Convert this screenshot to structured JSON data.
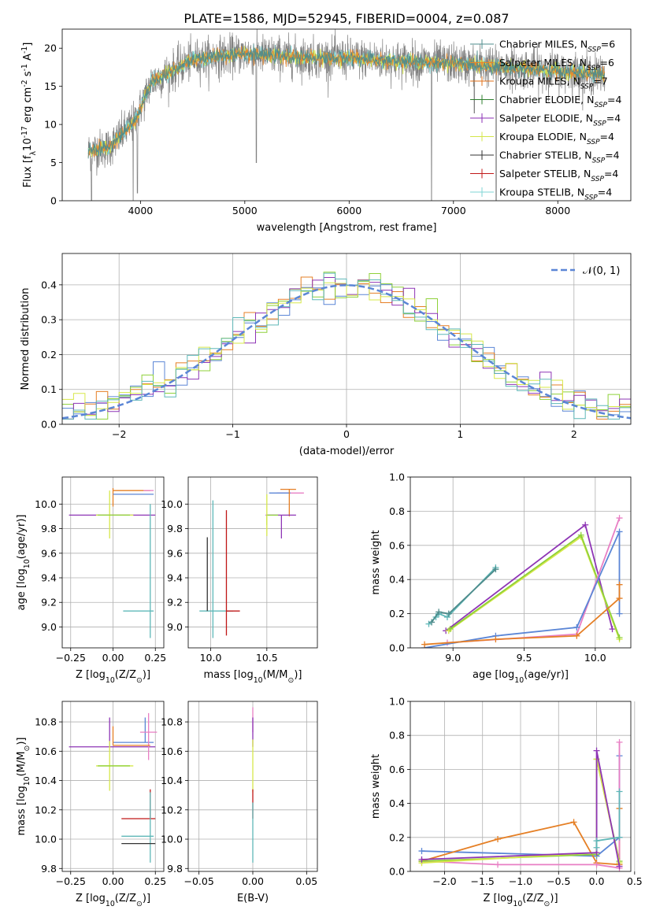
{
  "title": "PLATE=1586, MJD=52945, FIBERID=0004, z=0.087",
  "colors": {
    "chabrier_miles": "#4f8c8c",
    "salpeter_miles": "#e8862a",
    "kroupa_miles": "#e0701a",
    "chabrier_elodie": "#2f7f2f",
    "salpeter_elodie": "#8b2fb5",
    "kroupa_elodie": "#d4e64a",
    "chabrier_stelib": "#333333",
    "salpeter_stelib": "#c01818",
    "kroupa_stelib": "#7fd6d6",
    "data": "#808080",
    "blue": "#5b86d6",
    "pink": "#e87fc4",
    "green": "#8fd13a",
    "purple": "#8e35b5",
    "orange": "#e57f25",
    "yellow": "#d7e84a",
    "teal": "#5fb8b8"
  },
  "chart_data": [
    {
      "id": "spectrum",
      "type": "line",
      "xlabel": "wavelength [Angstrom, rest frame]",
      "ylabel": "Flux [f$_\\lambda$10$^{-17}$ erg cm$^{-2}$ s$^{-1}$ A$^{-1}$]",
      "xlim": [
        3250,
        8700
      ],
      "ylim": [
        0,
        22.5
      ],
      "xticks": [
        4000,
        5000,
        6000,
        7000,
        8000
      ],
      "yticks": [
        0,
        5,
        10,
        15,
        20
      ],
      "legend_position": "top-right",
      "legend": [
        {
          "label": "Chabrier MILES, N",
          "sub": "SSP",
          "suffix": "=6",
          "color": "chabrier_miles"
        },
        {
          "label": "Salpeter MILES, N",
          "sub": "SSP",
          "suffix": "=6",
          "color": "salpeter_miles"
        },
        {
          "label": "Kroupa MILES, N",
          "sub": "SSP",
          "suffix": "=7",
          "color": "kroupa_miles"
        },
        {
          "label": "Chabrier ELODIE, N",
          "sub": "SSP",
          "suffix": "=4",
          "color": "chabrier_elodie"
        },
        {
          "label": "Salpeter ELODIE, N",
          "sub": "SSP",
          "suffix": "=4",
          "color": "salpeter_elodie"
        },
        {
          "label": "Kroupa ELODIE, N",
          "sub": "SSP",
          "suffix": "=4",
          "color": "kroupa_elodie"
        },
        {
          "label": "Chabrier STELIB, N",
          "sub": "SSP",
          "suffix": "=4",
          "color": "chabrier_stelib"
        },
        {
          "label": "Salpeter STELIB, N",
          "sub": "SSP",
          "suffix": "=4",
          "color": "salpeter_stelib"
        },
        {
          "label": "Kroupa STELIB, N",
          "sub": "SSP",
          "suffix": "=4",
          "color": "kroupa_stelib"
        }
      ],
      "continuum": [
        [
          3500,
          6.5
        ],
        [
          3700,
          7.0
        ],
        [
          3950,
          10.5
        ],
        [
          4100,
          15.5
        ],
        [
          4300,
          17.0
        ],
        [
          4500,
          18.5
        ],
        [
          5000,
          19.3
        ],
        [
          5500,
          18.8
        ],
        [
          6000,
          18.7
        ],
        [
          6500,
          18.3
        ],
        [
          7000,
          18.0
        ],
        [
          7500,
          17.5
        ],
        [
          8000,
          17.0
        ],
        [
          8450,
          16.5
        ]
      ],
      "dips": [
        [
          3530,
          0
        ],
        [
          3930,
          0
        ],
        [
          3970,
          1.0
        ],
        [
          5110,
          5.0
        ],
        [
          6790,
          0
        ],
        [
          7410,
          0
        ],
        [
          7200,
          11.5
        ]
      ]
    },
    {
      "id": "residuals",
      "type": "histogram",
      "xlabel": "(data-model)/error",
      "ylabel": "Normed distribution",
      "xlim": [
        -2.5,
        2.5
      ],
      "ylim": [
        0,
        0.49
      ],
      "xticks": [
        -2,
        -1,
        0,
        1,
        2
      ],
      "yticks": [
        0.0,
        0.1,
        0.2,
        0.3,
        0.4
      ],
      "legend": "$\\mathcal{N}(0, 1)$",
      "bin_width": 0.1,
      "series_colors": [
        "blue",
        "orange",
        "green",
        "purple",
        "yellow",
        "teal"
      ]
    },
    {
      "id": "age_vs_z",
      "type": "errorbar",
      "xlabel": "Z [log$_{10}$(Z/Z$_\\odot$)]",
      "ylabel": "age  [log$_{10}$(age/yr)]",
      "xlim": [
        -0.3,
        0.3
      ],
      "ylim": [
        8.83,
        10.22
      ],
      "xticks": [
        -0.25,
        0.0,
        0.25
      ],
      "yticks": [
        9.0,
        9.2,
        9.4,
        9.6,
        9.8,
        10.0
      ],
      "points": [
        {
          "x": 0.0,
          "y": 10.11,
          "xerr": [
            0.0,
            0.22
          ],
          "yerr": [
            0.13,
            0.02
          ],
          "c": "orange"
        },
        {
          "x": 0.21,
          "y": 10.11,
          "xerr": [
            0.03,
            0.03
          ],
          "yerr": [
            0.0,
            0.0
          ],
          "c": "pink"
        },
        {
          "x": 0.19,
          "y": 10.08,
          "xerr": [
            0.19,
            0.05
          ],
          "yerr": [
            0.0,
            0.0
          ],
          "c": "blue"
        },
        {
          "x": -0.02,
          "y": 9.91,
          "xerr": [
            0.24,
            0.27
          ],
          "yerr": [
            0.0,
            0.0
          ],
          "c": "purple"
        },
        {
          "x": -0.02,
          "y": 9.91,
          "xerr": [
            0.08,
            0.14
          ],
          "yerr": [
            0.19,
            0.2
          ],
          "c": "yellow"
        },
        {
          "x": -0.02,
          "y": 9.91,
          "xerr": [
            0.07,
            0.12
          ],
          "yerr": [
            0.0,
            0.0
          ],
          "c": "green"
        },
        {
          "x": 0.22,
          "y": 9.13,
          "xerr": [
            0.16,
            0.02
          ],
          "yerr": [
            0.0,
            0.0
          ],
          "c": "teal"
        },
        {
          "x": 0.22,
          "y": 9.13,
          "xerr": [
            0.0,
            0.0
          ],
          "yerr": [
            0.22,
            0.87
          ],
          "c": "teal"
        }
      ]
    },
    {
      "id": "age_vs_mass",
      "type": "errorbar",
      "xlabel": "mass [log$_{10}$(M/M$_\\odot$)]",
      "ylabel": "",
      "xlim": [
        9.8,
        10.95
      ],
      "ylim": [
        8.83,
        10.22
      ],
      "xticks": [
        10.0,
        10.5
      ],
      "yticks": [
        9.0,
        9.2,
        9.4,
        9.6,
        9.8,
        10.0
      ],
      "points": [
        {
          "x": 10.68,
          "y": 10.12,
          "xerr": [
            0.06,
            0.08
          ],
          "yerr": [
            0.0,
            0.0
          ],
          "c": "orange"
        },
        {
          "x": 10.73,
          "y": 10.09,
          "xerr": [
            0.14,
            0.1
          ],
          "yerr": [
            0.0,
            0.0
          ],
          "c": "pink"
        },
        {
          "x": 10.64,
          "y": 10.09,
          "xerr": [
            0.12,
            0.07
          ],
          "yerr": [
            0.0,
            0.0
          ],
          "c": "blue"
        },
        {
          "x": 10.7,
          "y": 10.0,
          "xerr": [
            0.0,
            0.0
          ],
          "yerr": [
            0.1,
            0.12
          ],
          "c": "orange"
        },
        {
          "x": 10.63,
          "y": 9.91,
          "xerr": [
            0.14,
            0.13
          ],
          "yerr": [
            0.19,
            0.0
          ],
          "c": "purple"
        },
        {
          "x": 10.5,
          "y": 9.91,
          "xerr": [
            0.0,
            0.1
          ],
          "yerr": [
            0.08,
            0.0
          ],
          "c": "green"
        },
        {
          "x": 10.5,
          "y": 9.91,
          "xerr": [
            0.0,
            0.0
          ],
          "yerr": [
            0.17,
            0.17
          ],
          "c": "yellow"
        },
        {
          "x": 10.02,
          "y": 9.13,
          "xerr": [
            0.12,
            0.18
          ],
          "yerr": [
            0.0,
            0.0
          ],
          "c": "teal"
        },
        {
          "x": 10.02,
          "y": 9.13,
          "xerr": [
            0.0,
            0.0
          ],
          "yerr": [
            0.22,
            0.9
          ],
          "c": "teal"
        },
        {
          "x": 9.97,
          "y": 9.13,
          "xerr": [
            0.0,
            0.0
          ],
          "yerr": [
            0.0,
            0.6
          ],
          "c": "chabrier_stelib"
        },
        {
          "x": 10.14,
          "y": 9.13,
          "xerr": [
            0.0,
            0.12
          ],
          "yerr": [
            0.2,
            0.82
          ],
          "c": "salpeter_stelib"
        }
      ]
    },
    {
      "id": "mass_weight_vs_age",
      "type": "line",
      "xlabel": "age  [log$_{10}$(age/yr)]",
      "ylabel": "mass weight",
      "xlim": [
        8.7,
        10.25
      ],
      "ylim": [
        0.0,
        1.0
      ],
      "xticks": [
        9.0,
        9.5,
        10.0
      ],
      "yticks": [
        0.0,
        0.2,
        0.4,
        0.6,
        0.8,
        1.0
      ],
      "series": [
        {
          "c": "teal",
          "points": [
            [
              8.83,
              0.14
            ],
            [
              8.88,
              0.18
            ],
            [
              8.9,
              0.2
            ],
            [
              8.96,
              0.18
            ],
            [
              9.3,
              0.47
            ]
          ]
        },
        {
          "c": "chabrier_miles",
          "points": [
            [
              8.85,
              0.15
            ],
            [
              8.9,
              0.21
            ],
            [
              8.97,
              0.2
            ],
            [
              9.3,
              0.46
            ]
          ]
        },
        {
          "c": "purple",
          "points": [
            [
              8.95,
              0.1
            ],
            [
              9.93,
              0.72
            ],
            [
              10.12,
              0.11
            ]
          ]
        },
        {
          "c": "yellow",
          "points": [
            [
              8.97,
              0.1
            ],
            [
              9.9,
              0.65
            ],
            [
              10.17,
              0.05
            ]
          ]
        },
        {
          "c": "green",
          "points": [
            [
              8.98,
              0.11
            ],
            [
              9.9,
              0.66
            ],
            [
              10.17,
              0.06
            ]
          ]
        },
        {
          "c": "pink",
          "points": [
            [
              8.96,
              0.03
            ],
            [
              9.87,
              0.08
            ],
            [
              10.17,
              0.76
            ]
          ]
        },
        {
          "c": "blue",
          "points": [
            [
              8.8,
              0.0
            ],
            [
              9.3,
              0.07
            ],
            [
              9.87,
              0.12
            ],
            [
              10.17,
              0.68
            ],
            [
              10.17,
              0.2
            ]
          ]
        },
        {
          "c": "orange",
          "points": [
            [
              8.8,
              0.02
            ],
            [
              9.3,
              0.05
            ],
            [
              9.87,
              0.07
            ],
            [
              10.17,
              0.29
            ],
            [
              10.17,
              0.37
            ]
          ]
        }
      ]
    },
    {
      "id": "mass_vs_z",
      "type": "errorbar",
      "xlabel": "Z [log$_{10}$(Z/Z$_\\odot$)]",
      "ylabel": "mass [log$_{10}$(M/M$_\\odot$)]",
      "xlim": [
        -0.3,
        0.3
      ],
      "ylim": [
        9.78,
        10.94
      ],
      "xticks": [
        -0.25,
        0.0,
        0.25
      ],
      "yticks": [
        9.8,
        10.0,
        10.2,
        10.4,
        10.6,
        10.8
      ],
      "points": [
        {
          "x": -0.02,
          "y": 10.63,
          "xerr": [
            0.24,
            0.27
          ],
          "yerr": [
            0.0,
            0.2
          ],
          "c": "purple"
        },
        {
          "x": 0.19,
          "y": 10.66,
          "xerr": [
            0.19,
            0.05
          ],
          "yerr": [
            0.0,
            0.17
          ],
          "c": "blue"
        },
        {
          "x": 0.21,
          "y": 10.73,
          "xerr": [
            0.05,
            0.05
          ],
          "yerr": [
            0.19,
            0.13
          ],
          "c": "pink"
        },
        {
          "x": 0.0,
          "y": 10.64,
          "xerr": [
            0.0,
            0.22
          ],
          "yerr": [
            0.0,
            0.13
          ],
          "c": "orange"
        },
        {
          "x": -0.02,
          "y": 10.5,
          "xerr": [
            0.08,
            0.14
          ],
          "yerr": [
            0.17,
            0.17
          ],
          "c": "yellow"
        },
        {
          "x": -0.02,
          "y": 10.5,
          "xerr": [
            0.07,
            0.12
          ],
          "yerr": [
            0.0,
            0.0
          ],
          "c": "green"
        },
        {
          "x": 0.22,
          "y": 10.14,
          "xerr": [
            0.17,
            0.03
          ],
          "yerr": [
            0.0,
            0.2
          ],
          "c": "salpeter_stelib"
        },
        {
          "x": 0.22,
          "y": 10.02,
          "xerr": [
            0.17,
            0.02
          ],
          "yerr": [
            0.18,
            0.3
          ],
          "c": "teal"
        },
        {
          "x": 0.22,
          "y": 9.97,
          "xerr": [
            0.17,
            0.03
          ],
          "yerr": [
            0.0,
            0.0
          ],
          "c": "chabrier_stelib"
        }
      ]
    },
    {
      "id": "mass_vs_ebv",
      "type": "errorbar",
      "xlabel": "E(B-V)",
      "ylabel": "",
      "xlim": [
        -0.06,
        0.06
      ],
      "ylim": [
        9.78,
        10.94
      ],
      "xticks": [
        -0.05,
        0.0,
        0.05
      ],
      "yticks": [
        9.8,
        10.0,
        10.2,
        10.4,
        10.6,
        10.8
      ],
      "points": [
        {
          "x": 0.0,
          "y": 10.73,
          "xerr": [
            0.0,
            0.0
          ],
          "yerr": [
            0.0,
            0.17
          ],
          "c": "pink"
        },
        {
          "x": 0.0,
          "y": 10.63,
          "xerr": [
            0.0,
            0.0
          ],
          "yerr": [
            0.0,
            0.2
          ],
          "c": "purple"
        },
        {
          "x": 0.0,
          "y": 10.5,
          "xerr": [
            0.0,
            0.0
          ],
          "yerr": [
            0.18,
            0.18
          ],
          "c": "yellow"
        },
        {
          "x": 0.0,
          "y": 10.14,
          "xerr": [
            0.0,
            0.0
          ],
          "yerr": [
            0.0,
            0.2
          ],
          "c": "salpeter_stelib"
        },
        {
          "x": 0.0,
          "y": 10.02,
          "xerr": [
            0.0,
            0.0
          ],
          "yerr": [
            0.18,
            0.23
          ],
          "c": "teal"
        }
      ]
    },
    {
      "id": "mass_weight_vs_z",
      "type": "line",
      "xlabel": "Z [log$_{10}$(Z/Z$_\\odot$)]",
      "ylabel": "mass weight",
      "xlim": [
        -2.45,
        0.45
      ],
      "ylim": [
        0.0,
        1.0
      ],
      "xticks": [
        -2.0,
        -1.5,
        -1.0,
        -0.5,
        0.0,
        0.5
      ],
      "yticks": [
        0.0,
        0.2,
        0.4,
        0.6,
        0.8,
        1.0
      ],
      "series": [
        {
          "c": "blue",
          "points": [
            [
              -2.3,
              0.12
            ],
            [
              0.0,
              0.09
            ],
            [
              0.3,
              0.2
            ],
            [
              0.3,
              0.68
            ]
          ]
        },
        {
          "c": "orange",
          "points": [
            [
              -2.3,
              0.06
            ],
            [
              -1.3,
              0.19
            ],
            [
              -0.3,
              0.29
            ],
            [
              0.0,
              0.05
            ],
            [
              0.3,
              0.04
            ],
            [
              0.3,
              0.37
            ]
          ]
        },
        {
          "c": "pink",
          "points": [
            [
              -2.3,
              0.06
            ],
            [
              -1.3,
              0.04
            ],
            [
              0.0,
              0.04
            ],
            [
              0.3,
              0.02
            ],
            [
              0.3,
              0.76
            ]
          ]
        },
        {
          "c": "green",
          "points": [
            [
              -2.3,
              0.06
            ],
            [
              0.0,
              0.1
            ],
            [
              0.0,
              0.66
            ],
            [
              0.3,
              0.06
            ]
          ]
        },
        {
          "c": "yellow",
          "points": [
            [
              -2.3,
              0.05
            ],
            [
              0.0,
              0.11
            ],
            [
              0.0,
              0.66
            ],
            [
              0.3,
              0.05
            ]
          ]
        },
        {
          "c": "purple",
          "points": [
            [
              -2.3,
              0.07
            ],
            [
              0.0,
              0.11
            ],
            [
              0.0,
              0.71
            ],
            [
              0.3,
              0.03
            ]
          ]
        },
        {
          "c": "teal",
          "points": [
            [
              0.0,
              0.14
            ],
            [
              0.0,
              0.18
            ],
            [
              0.3,
              0.2
            ],
            [
              0.3,
              0.47
            ]
          ]
        }
      ]
    }
  ]
}
